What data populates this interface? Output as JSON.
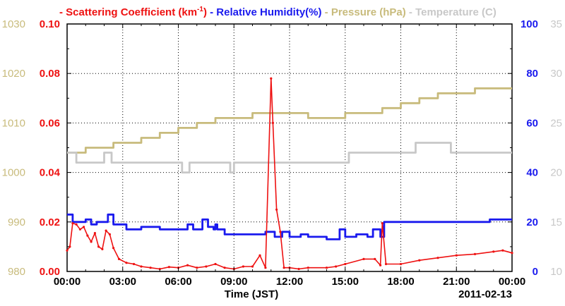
{
  "chart_data": {
    "type": "line",
    "legend": [
      {
        "marker": "-",
        "name": "Scattering Coefficient (km",
        "sup": "-1",
        "tail": ")",
        "color": "#ee1111"
      },
      {
        "marker": "-",
        "name": "Relative Humidity(%)",
        "color": "#1a1aee"
      },
      {
        "marker": "-",
        "name": "Pressure (hPa)",
        "color": "#c8bb7c"
      },
      {
        "marker": "-",
        "name": "Temperature (C)",
        "color": "#c8c8c8"
      }
    ],
    "xlabel": "Time (JST)",
    "date_label": "2011-02-13",
    "x_range_hours": [
      0,
      24
    ],
    "x_ticks": [
      "00:00",
      "03:00",
      "06:00",
      "09:00",
      "12:00",
      "15:00",
      "18:00",
      "21:00",
      "00:00"
    ],
    "axes": {
      "pressure": {
        "range": [
          980,
          1030
        ],
        "ticks": [
          "980",
          "990",
          "1000",
          "1010",
          "1020",
          "1030"
        ],
        "color": "#c8bb7c"
      },
      "scattering": {
        "range": [
          0,
          0.1
        ],
        "ticks": [
          "0.00",
          "0.02",
          "0.04",
          "0.06",
          "0.08",
          "0.10"
        ],
        "color": "#ee1111"
      },
      "humidity": {
        "range": [
          0,
          100
        ],
        "ticks": [
          "0",
          "20",
          "40",
          "60",
          "80",
          "100"
        ],
        "color": "#1a1aee"
      },
      "temperature": {
        "range": [
          10,
          35
        ],
        "ticks": [
          "10",
          "15",
          "20",
          "25",
          "30",
          "35"
        ],
        "color": "#c8c8c8"
      }
    },
    "series": [
      {
        "name": "Pressure (hPa)",
        "axis": "pressure",
        "color": "#c8bb7c",
        "step": true,
        "points": [
          [
            0,
            1004
          ],
          [
            1,
            1005
          ],
          [
            2.5,
            1006
          ],
          [
            4,
            1007
          ],
          [
            5,
            1008
          ],
          [
            6,
            1009
          ],
          [
            7,
            1010
          ],
          [
            8,
            1011
          ],
          [
            9,
            1011
          ],
          [
            10,
            1012
          ],
          [
            11.5,
            1012
          ],
          [
            13,
            1011
          ],
          [
            14.5,
            1011
          ],
          [
            15,
            1012
          ],
          [
            16,
            1012
          ],
          [
            17,
            1013
          ],
          [
            18,
            1014
          ],
          [
            19,
            1015
          ],
          [
            20,
            1016
          ],
          [
            22,
            1017
          ],
          [
            24,
            1017
          ]
        ]
      },
      {
        "name": "Temperature (C)",
        "axis": "temperature",
        "color": "#c8c8c8",
        "step": true,
        "points": [
          [
            0,
            22
          ],
          [
            0.5,
            21
          ],
          [
            2,
            22
          ],
          [
            2.4,
            21
          ],
          [
            6.2,
            20
          ],
          [
            6.6,
            21
          ],
          [
            8.8,
            20
          ],
          [
            9,
            21
          ],
          [
            15,
            21
          ],
          [
            15.2,
            22
          ],
          [
            18.8,
            23
          ],
          [
            20.7,
            22
          ],
          [
            24,
            22
          ]
        ]
      },
      {
        "name": "Relative Humidity(%)",
        "axis": "humidity",
        "color": "#1a1aee",
        "step": true,
        "points": [
          [
            0,
            23
          ],
          [
            0.3,
            20
          ],
          [
            0.8,
            20
          ],
          [
            1,
            21
          ],
          [
            1.3,
            19
          ],
          [
            1.6,
            20
          ],
          [
            2.2,
            23
          ],
          [
            2.5,
            19
          ],
          [
            2.9,
            19
          ],
          [
            3.2,
            17
          ],
          [
            4,
            18
          ],
          [
            5,
            17
          ],
          [
            6.2,
            17
          ],
          [
            6.5,
            19
          ],
          [
            6.8,
            17
          ],
          [
            7.3,
            21
          ],
          [
            7.6,
            18
          ],
          [
            7.9,
            17
          ],
          [
            8,
            19
          ],
          [
            8.1,
            17
          ],
          [
            8.5,
            15
          ],
          [
            9,
            15
          ],
          [
            10,
            15
          ],
          [
            10.7,
            16
          ],
          [
            11.2,
            14
          ],
          [
            11.6,
            16
          ],
          [
            12,
            14
          ],
          [
            12.6,
            15
          ],
          [
            13,
            14
          ],
          [
            14,
            13
          ],
          [
            14.7,
            17
          ],
          [
            15,
            14
          ],
          [
            15.6,
            15
          ],
          [
            16.2,
            14
          ],
          [
            16.5,
            17
          ],
          [
            16.9,
            14
          ],
          [
            17.1,
            20
          ],
          [
            18,
            20
          ],
          [
            19,
            20
          ],
          [
            20,
            20
          ],
          [
            21,
            20
          ],
          [
            22,
            20
          ],
          [
            22.8,
            21
          ],
          [
            23.5,
            21
          ],
          [
            24,
            21
          ]
        ]
      },
      {
        "name": "Scattering Coefficient (km-1)",
        "axis": "scattering",
        "color": "#ee1111",
        "markers": true,
        "points": [
          [
            0,
            0.0085
          ],
          [
            0.15,
            0.01
          ],
          [
            0.3,
            0.0195
          ],
          [
            0.5,
            0.019
          ],
          [
            0.7,
            0.017
          ],
          [
            0.9,
            0.018
          ],
          [
            1.1,
            0.0145
          ],
          [
            1.3,
            0.012
          ],
          [
            1.5,
            0.0155
          ],
          [
            1.7,
            0.01
          ],
          [
            1.9,
            0.009
          ],
          [
            2.1,
            0.0165
          ],
          [
            2.3,
            0.015
          ],
          [
            2.5,
            0.0095
          ],
          [
            2.8,
            0.005
          ],
          [
            3.2,
            0.0035
          ],
          [
            3.6,
            0.003
          ],
          [
            4,
            0.002
          ],
          [
            4.5,
            0.0015
          ],
          [
            5,
            0.001
          ],
          [
            5.5,
            0.0018
          ],
          [
            6,
            0.0015
          ],
          [
            6.5,
            0.0025
          ],
          [
            7,
            0.0015
          ],
          [
            7.5,
            0.002
          ],
          [
            8,
            0.003
          ],
          [
            8.5,
            0.0015
          ],
          [
            9,
            0.001
          ],
          [
            9.5,
            0.002
          ],
          [
            10,
            0.002
          ],
          [
            10.4,
            0.0065
          ],
          [
            10.7,
            0.0015
          ],
          [
            11.0,
            0.078
          ],
          [
            11.1,
            0.06
          ],
          [
            11.3,
            0.025
          ],
          [
            11.5,
            0.016
          ],
          [
            11.7,
            0.0015
          ],
          [
            12,
            0.0015
          ],
          [
            12.5,
            0.001
          ],
          [
            13,
            0.0015
          ],
          [
            14,
            0.0015
          ],
          [
            14.5,
            0.002
          ],
          [
            15,
            0.003
          ],
          [
            16,
            0.005
          ],
          [
            16.6,
            0.005
          ],
          [
            16.9,
            0.0025
          ],
          [
            17,
            0.0195
          ],
          [
            17.2,
            0.003
          ],
          [
            18,
            0.003
          ],
          [
            19,
            0.0045
          ],
          [
            20,
            0.0055
          ],
          [
            21,
            0.0065
          ],
          [
            22,
            0.007
          ],
          [
            23,
            0.008
          ],
          [
            23.5,
            0.0085
          ],
          [
            24,
            0.0075
          ]
        ]
      }
    ]
  }
}
